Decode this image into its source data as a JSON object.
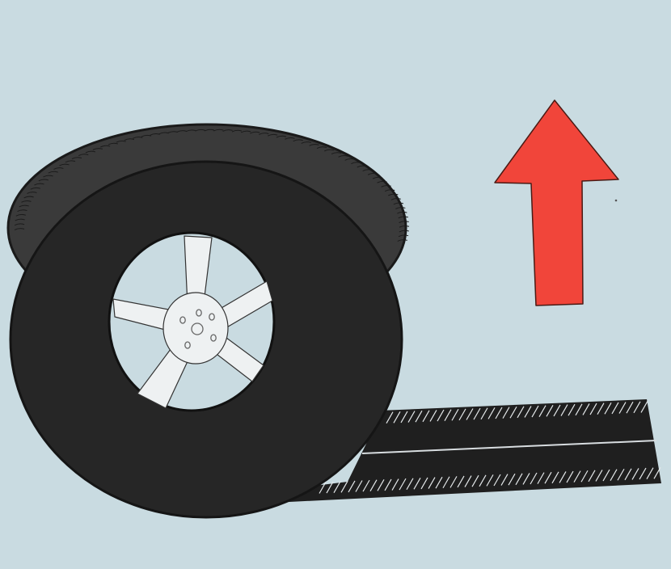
{
  "scene": {
    "subject": "tire-lifted-over-tread-strip",
    "colors": {
      "background": "#c9dbe1",
      "tire": "#262626",
      "tire_tread": "#3b3b3b",
      "rim": "#eef1f2",
      "arrow": "#f1453a",
      "tread_strip": "#222222"
    },
    "icons": {
      "arrow": "up-arrow-icon",
      "tire": "tire-icon"
    }
  }
}
